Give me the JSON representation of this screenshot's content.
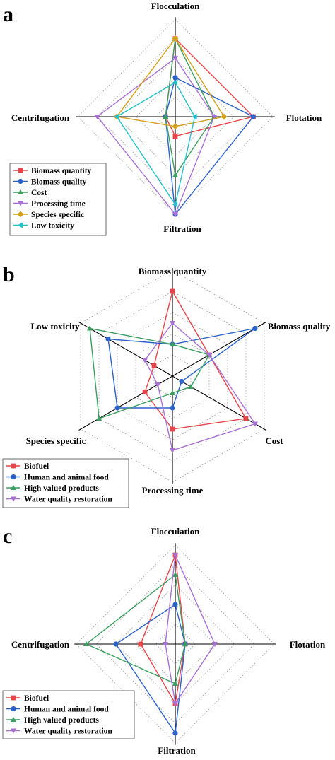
{
  "chart_data": [
    {
      "type": "radar",
      "panel": "a",
      "title": "",
      "axes": [
        "Flocculation",
        "Flotation",
        "Filtration",
        "Centrifugation"
      ],
      "rmax": 5,
      "grid": true,
      "legend_position": "bottom-left",
      "series": [
        {
          "name": "Biomass quantity",
          "color": "#e8454a",
          "marker": "square",
          "values": [
            4,
            4,
            1,
            0.5
          ]
        },
        {
          "name": "Biomass quality",
          "color": "#2a62c9",
          "marker": "circle",
          "values": [
            2,
            4,
            5,
            0.5
          ]
        },
        {
          "name": "Cost",
          "color": "#3a9f5e",
          "marker": "triangle-up",
          "values": [
            4,
            2,
            3,
            0.5
          ]
        },
        {
          "name": "Processing time",
          "color": "#a870d6",
          "marker": "triangle-down",
          "values": [
            3,
            2,
            5,
            4
          ]
        },
        {
          "name": "Species specific",
          "color": "#d4a017",
          "marker": "diamond",
          "values": [
            4,
            2.5,
            0.5,
            3
          ]
        },
        {
          "name": "Low toxicity",
          "color": "#22c1cc",
          "marker": "triangle-left",
          "values": [
            1.75,
            1,
            4.5,
            3
          ]
        }
      ]
    },
    {
      "type": "radar",
      "panel": "b",
      "title": "",
      "axes": [
        "Biomass quantity",
        "Biomass quality",
        "Cost",
        "Processing time",
        "Species specific",
        "Low toxicity"
      ],
      "rmax": 5,
      "grid": true,
      "legend_position": "bottom-left",
      "series": [
        {
          "name": "Biofuel",
          "color": "#e8454a",
          "marker": "square",
          "values": [
            4,
            2,
            4,
            2.5,
            1.5,
            1
          ]
        },
        {
          "name": "Human and animal food",
          "color": "#2a62c9",
          "marker": "circle",
          "values": [
            1.5,
            4.5,
            0.5,
            1.5,
            3,
            3.5
          ]
        },
        {
          "name": "High valued products",
          "color": "#3a9f5e",
          "marker": "triangle-up",
          "values": [
            1.5,
            2,
            1,
            0.8,
            4,
            4.5
          ]
        },
        {
          "name": "Water quality restoration",
          "color": "#a870d6",
          "marker": "triangle-down",
          "values": [
            2.5,
            2,
            4.5,
            3.5,
            0.8,
            1.5
          ]
        }
      ]
    },
    {
      "type": "radar",
      "panel": "c",
      "title": "",
      "axes": [
        "Flocculation",
        "Flotation",
        "Filtration",
        "Centrifugation"
      ],
      "rmax": 5,
      "grid": true,
      "legend_position": "bottom-left",
      "series": [
        {
          "name": "Biofuel",
          "color": "#e8454a",
          "marker": "square",
          "values": [
            4.5,
            0.5,
            3,
            1.75
          ]
        },
        {
          "name": "Human and animal food",
          "color": "#2a62c9",
          "marker": "circle",
          "values": [
            2,
            0.5,
            4.5,
            3
          ]
        },
        {
          "name": "High valued products",
          "color": "#3a9f5e",
          "marker": "triangle-up",
          "values": [
            3.5,
            0.5,
            2,
            4.5
          ]
        },
        {
          "name": "Water quality restoration",
          "color": "#a870d6",
          "marker": "triangle-down",
          "values": [
            4.5,
            2,
            3,
            0.5
          ]
        }
      ]
    }
  ]
}
